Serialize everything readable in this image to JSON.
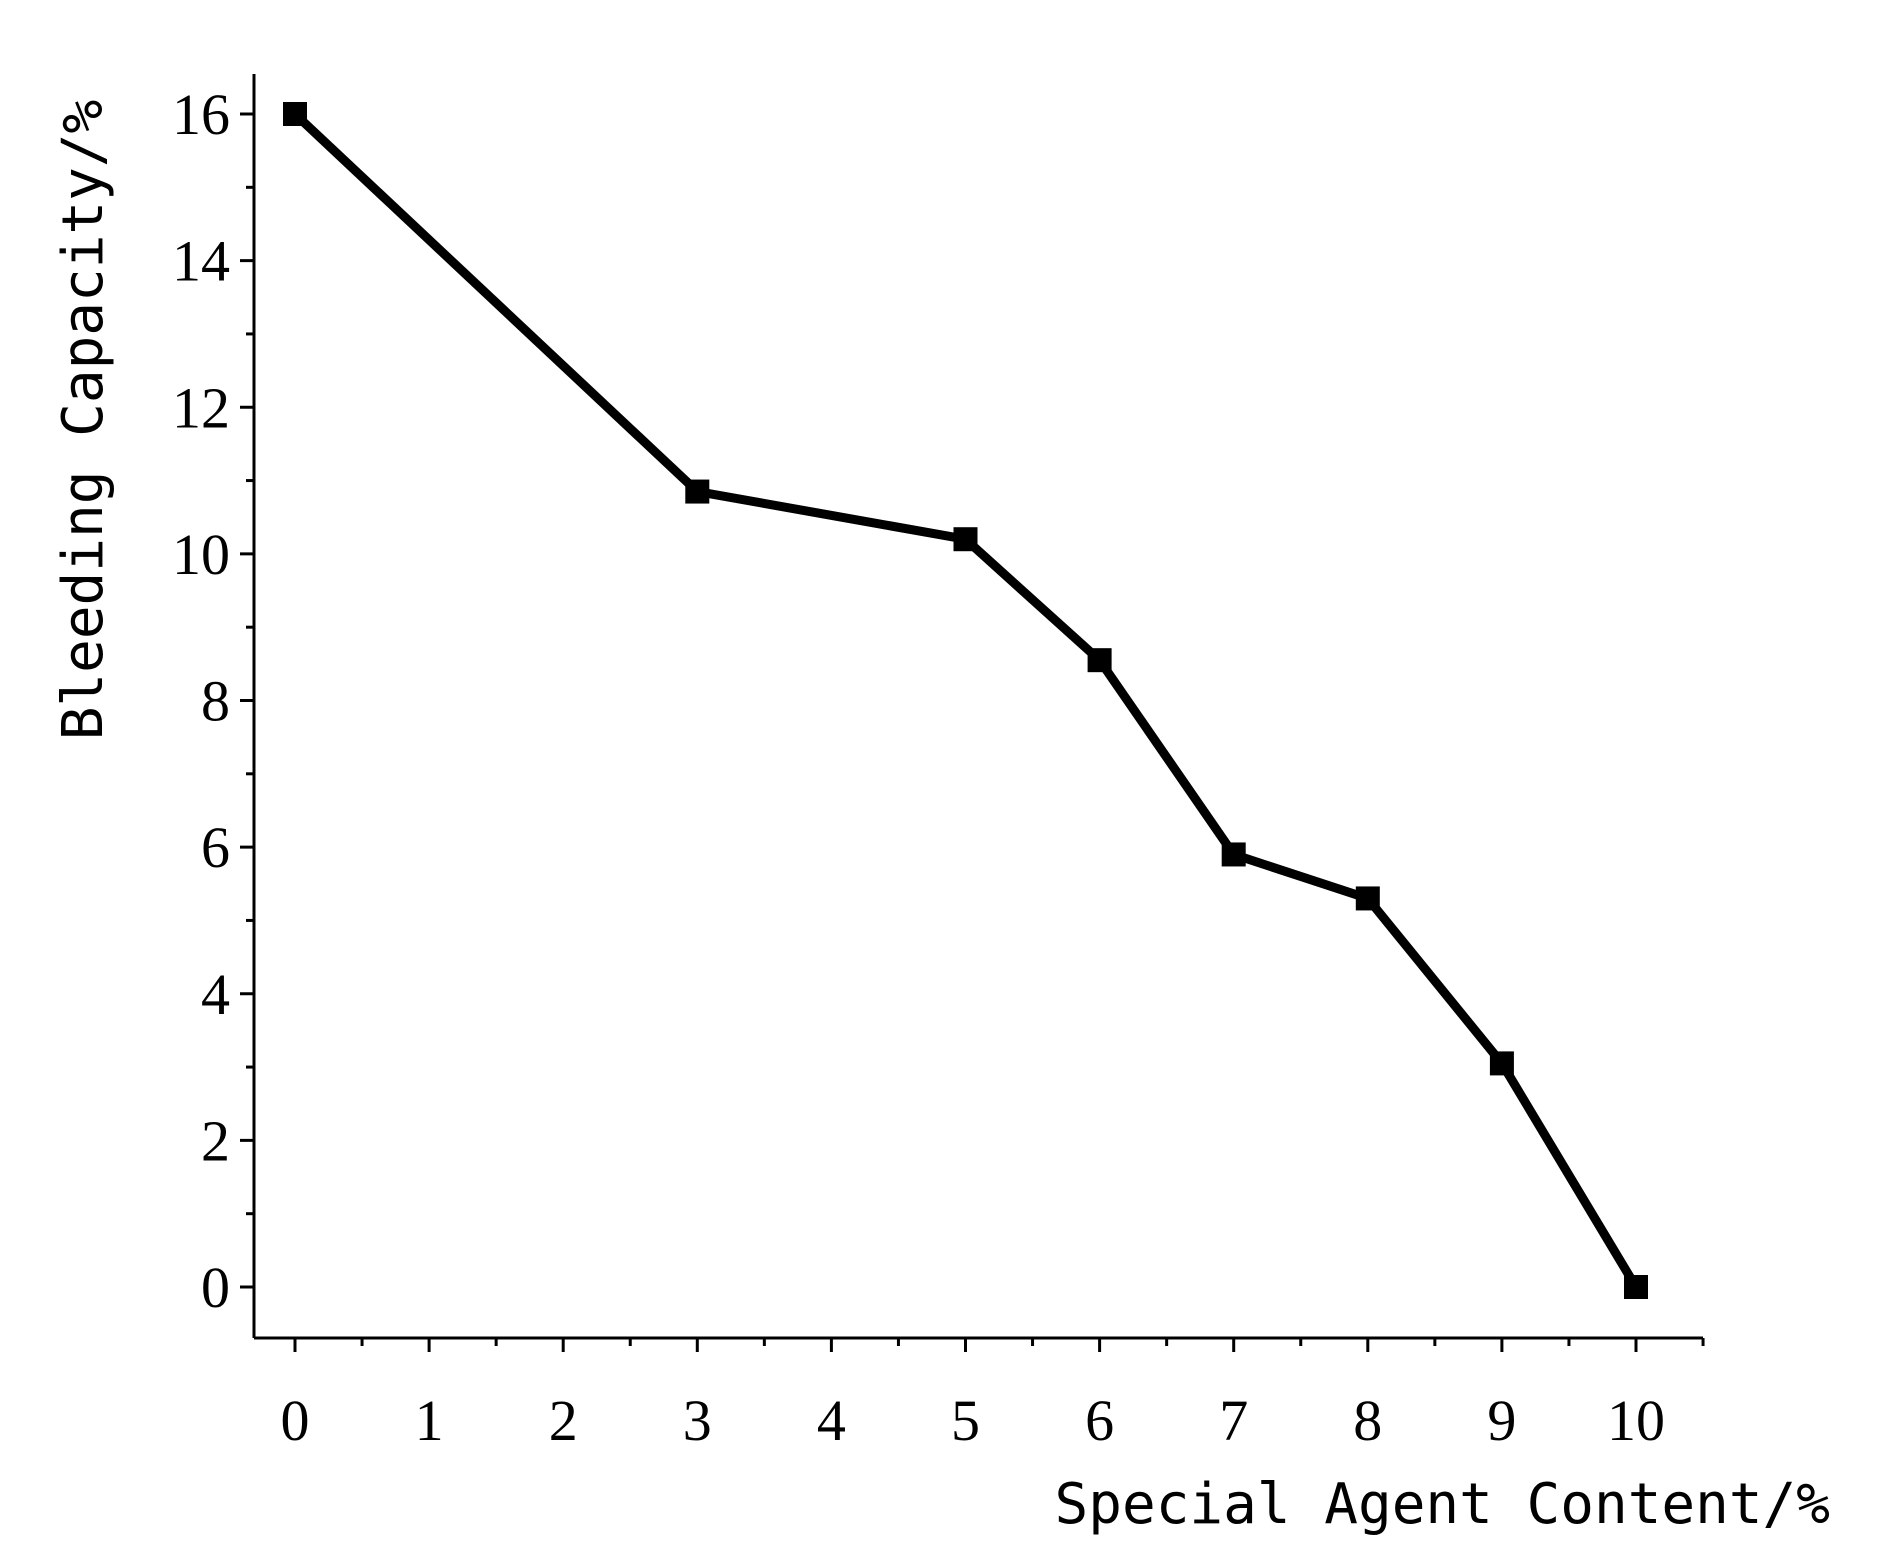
{
  "chart_data": {
    "type": "line",
    "title": "",
    "xlabel": "Special Agent Content/%",
    "ylabel": "Bleeding Capacity/%",
    "categories": [
      "0",
      "1",
      "2",
      "3",
      "4",
      "5",
      "6",
      "7",
      "8",
      "9",
      "10"
    ],
    "series": [
      {
        "points": [
          {
            "x": "0",
            "y": 16.0
          },
          {
            "x": "3",
            "y": 10.85
          },
          {
            "x": "5",
            "y": 10.2
          },
          {
            "x": "6",
            "y": 8.55
          },
          {
            "x": "7",
            "y": 5.9
          },
          {
            "x": "8",
            "y": 5.3
          },
          {
            "x": "9",
            "y": 3.05
          },
          {
            "x": "10",
            "y": 0.0
          }
        ]
      }
    ],
    "ylim": [
      -0.7,
      16.5
    ],
    "yticks": [
      0,
      2,
      4,
      6,
      8,
      10,
      12,
      14,
      16
    ],
    "y_minor_step": 1,
    "grid": false,
    "legend": "none",
    "line_color": "#000000",
    "marker": "square"
  }
}
